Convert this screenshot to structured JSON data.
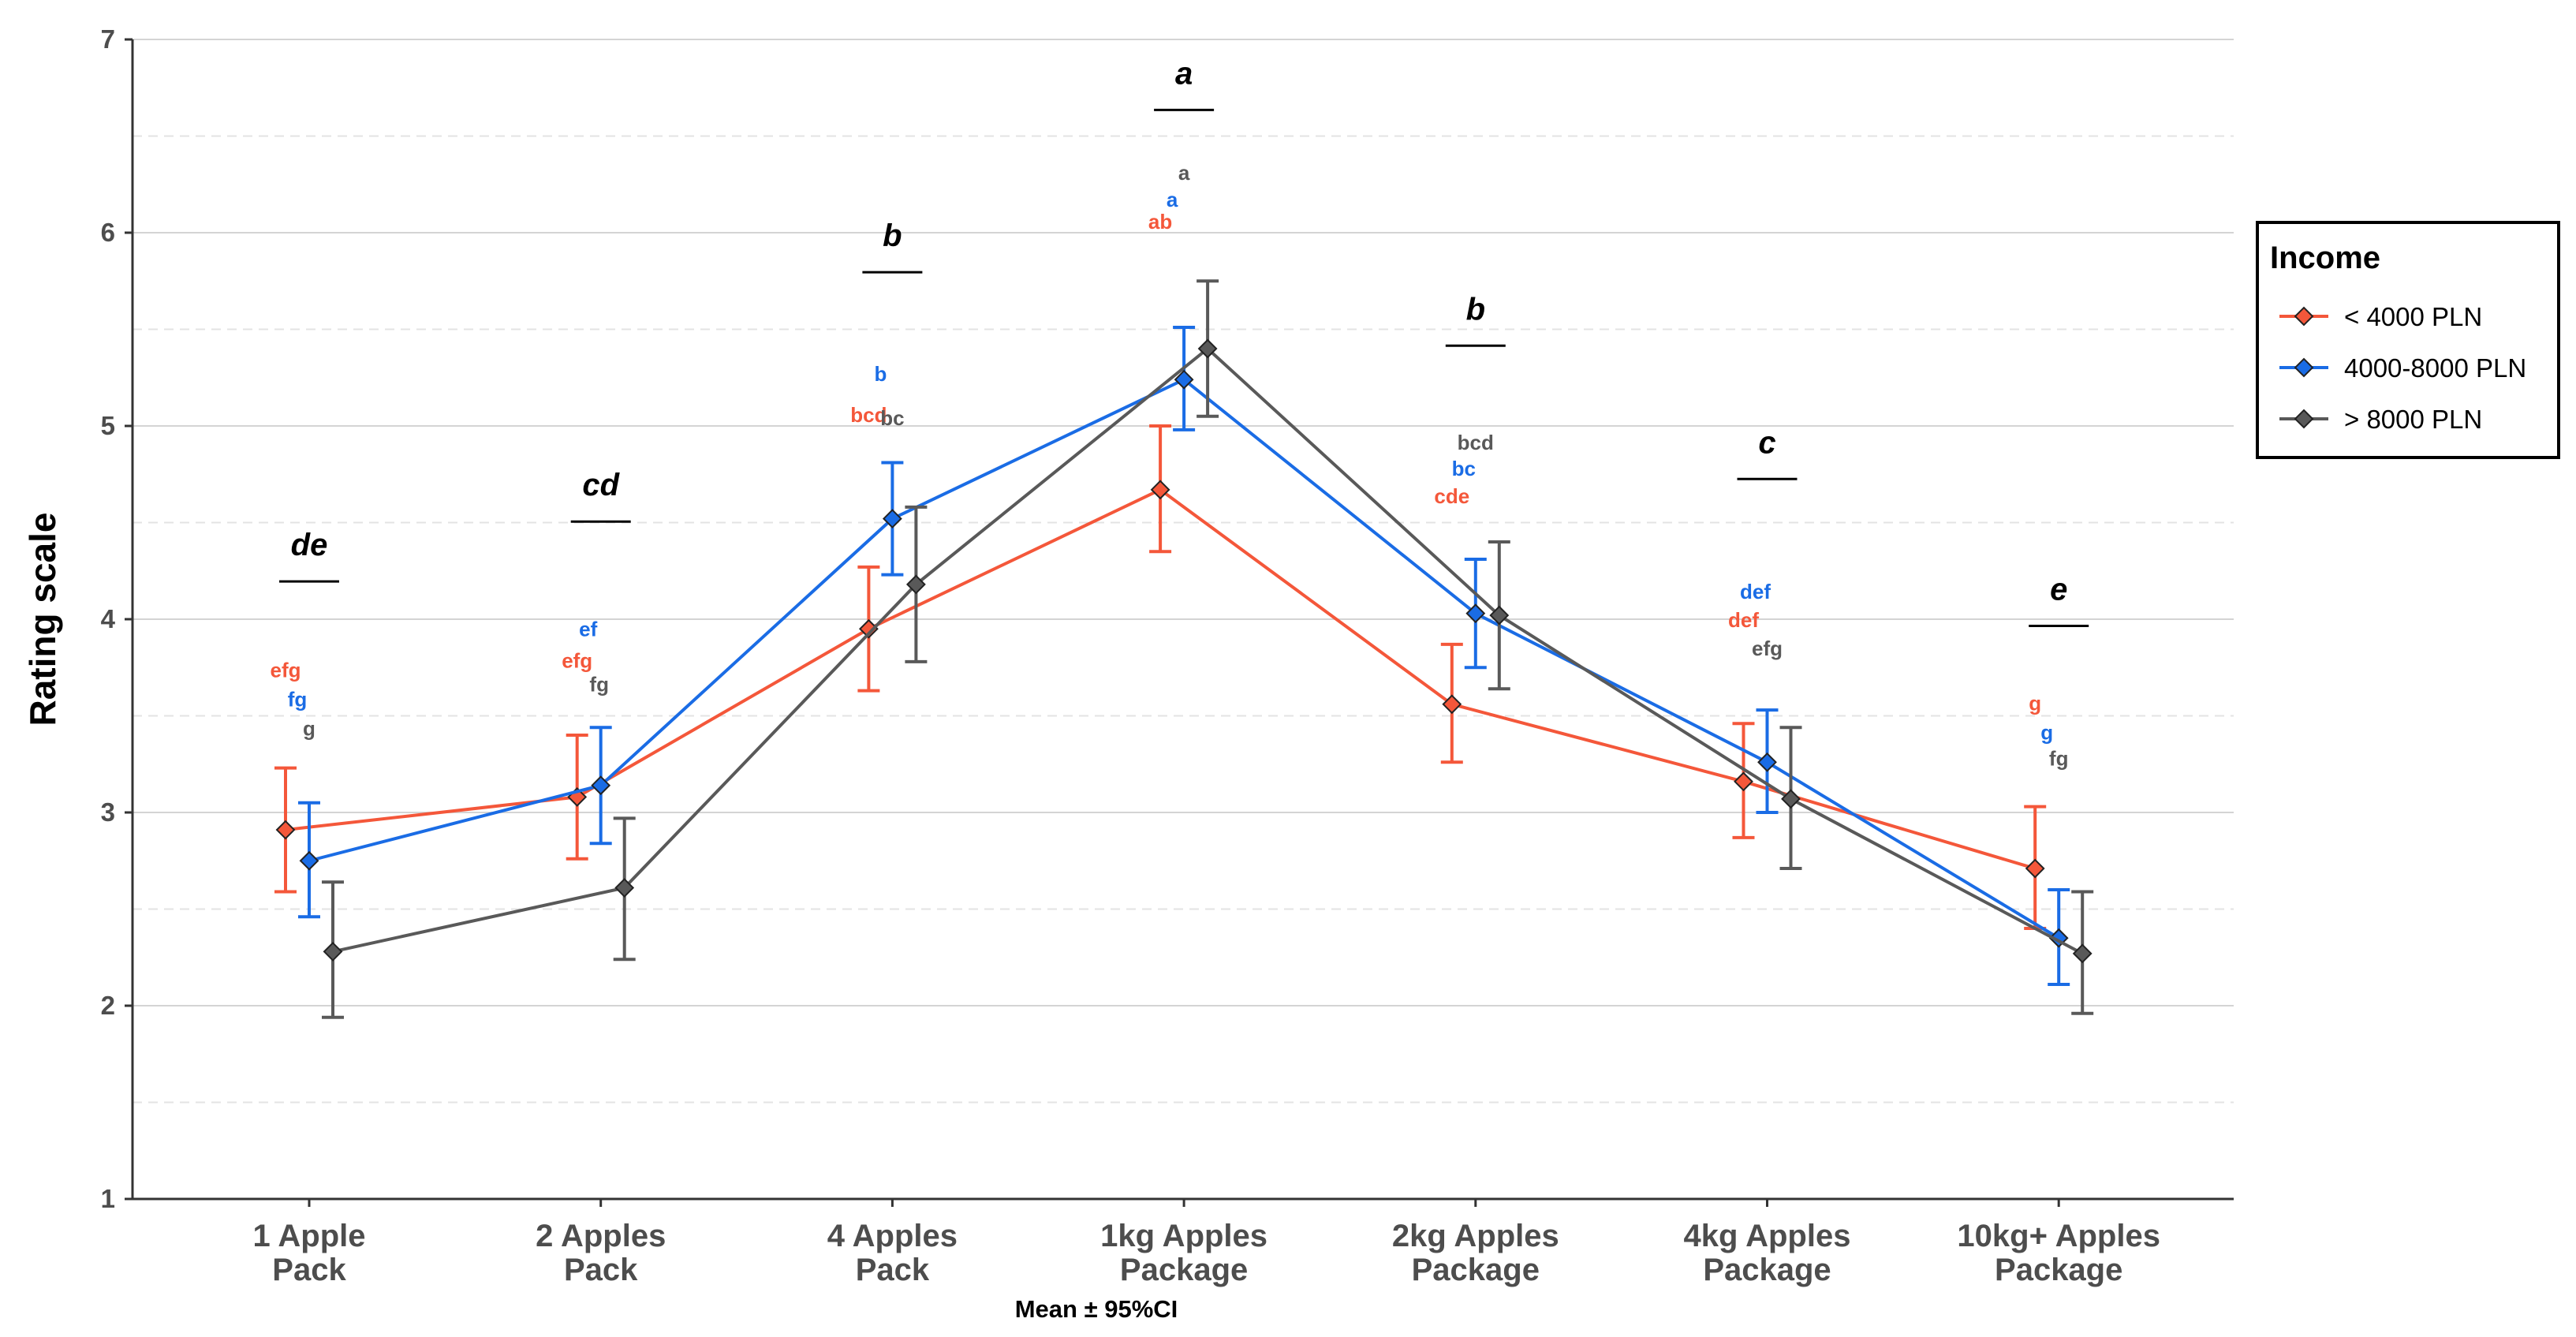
{
  "chart_data": {
    "type": "line",
    "title": "",
    "xlabel": "Mean ± 95%CI",
    "ylabel": "Rating scale",
    "ylim": [
      1,
      7
    ],
    "yticks": [
      "1",
      "2",
      "3",
      "4",
      "5",
      "6",
      "7"
    ],
    "grid": "horizontal major (solid) and minor (dashed)",
    "categories": [
      [
        "1 Apple",
        "Pack"
      ],
      [
        "2 Apples",
        "Pack"
      ],
      [
        "4 Apples",
        "Pack"
      ],
      [
        "1kg Apples",
        "Package"
      ],
      [
        "2kg Apples",
        "Package"
      ],
      [
        "4kg Apples",
        "Package"
      ],
      [
        "10kg+ Apples",
        "Package"
      ]
    ],
    "legend": {
      "title": "Income",
      "placement": "right"
    },
    "series": [
      {
        "name": "< 4000 PLN",
        "color": "#f4573a",
        "values": [
          2.91,
          3.08,
          3.95,
          4.67,
          3.56,
          3.16,
          2.71
        ],
        "ci_low": [
          2.59,
          2.76,
          3.63,
          4.35,
          3.26,
          2.87,
          2.4
        ],
        "ci_high": [
          3.23,
          3.4,
          4.27,
          5.0,
          3.87,
          3.46,
          3.03
        ],
        "letters": [
          "efg",
          "efg",
          "bcd",
          "ab",
          "cde",
          "def",
          "g"
        ]
      },
      {
        "name": "4000-8000 PLN",
        "color": "#1a6ce5",
        "values": [
          2.75,
          3.14,
          4.52,
          5.24,
          4.03,
          3.26,
          2.35
        ],
        "ci_low": [
          2.46,
          2.84,
          4.23,
          4.98,
          3.75,
          3.0,
          2.11
        ],
        "ci_high": [
          3.05,
          3.44,
          4.81,
          5.51,
          4.31,
          3.53,
          2.6
        ],
        "letters": [
          "fg",
          "ef",
          "b",
          "a",
          "bc",
          "def",
          "g"
        ]
      },
      {
        "name": "> 8000 PLN",
        "color": "#595959",
        "values": [
          2.28,
          2.61,
          4.18,
          5.4,
          4.02,
          3.07,
          2.27
        ],
        "ci_low": [
          1.94,
          2.24,
          3.78,
          5.05,
          3.64,
          2.71,
          1.96
        ],
        "ci_high": [
          2.64,
          2.97,
          4.58,
          5.75,
          4.4,
          3.44,
          2.59
        ],
        "letters": [
          "g",
          "fg",
          "bc",
          "a",
          "bcd",
          "efg",
          "fg"
        ]
      }
    ],
    "overall_letters": [
      "de",
      "cd",
      "b",
      "a",
      "b",
      "c",
      "e"
    ]
  }
}
